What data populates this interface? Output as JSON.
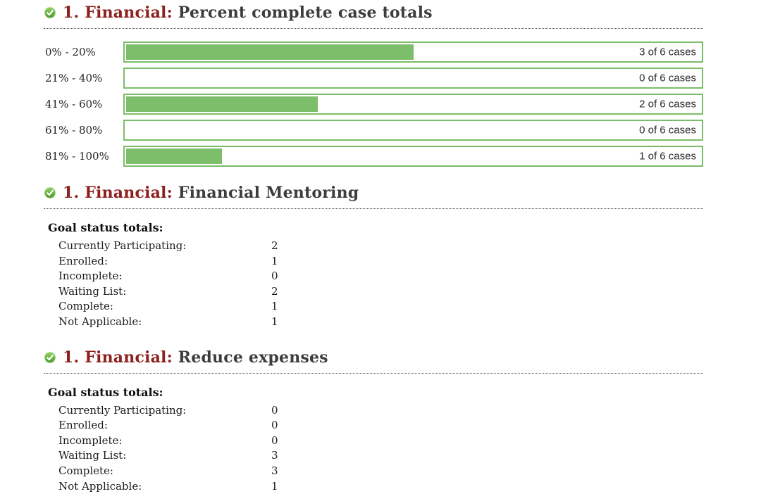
{
  "colors": {
    "bar_green": "#7dbe6a",
    "bar_border_green": "#7cbc68",
    "heading_red": "#8e1f1f",
    "heading_gray": "#3d3d3d",
    "icon_green": "#57a237"
  },
  "report": {
    "sections": [
      {
        "heading": {
          "prefix": "1. Financial:",
          "title": "Percent complete case totals"
        }
      },
      {
        "heading": {
          "prefix": "1. Financial:",
          "title": "Financial Mentoring"
        },
        "goal_totals": {
          "heading": "Goal status totals:",
          "items": [
            {
              "label": "Currently Participating:",
              "value": "2"
            },
            {
              "label": "Enrolled:",
              "value": "1"
            },
            {
              "label": "Incomplete:",
              "value": "0"
            },
            {
              "label": "Waiting List:",
              "value": "2"
            },
            {
              "label": "Complete:",
              "value": "1"
            },
            {
              "label": "Not Applicable:",
              "value": "1"
            }
          ]
        }
      },
      {
        "heading": {
          "prefix": "1. Financial:",
          "title": "Reduce expenses"
        },
        "goal_totals": {
          "heading": "Goal status totals:",
          "items": [
            {
              "label": "Currently Participating:",
              "value": "0"
            },
            {
              "label": "Enrolled:",
              "value": "0"
            },
            {
              "label": "Incomplete:",
              "value": "0"
            },
            {
              "label": "Waiting List:",
              "value": "3"
            },
            {
              "label": "Complete:",
              "value": "3"
            },
            {
              "label": "Not Applicable:",
              "value": "1"
            }
          ]
        }
      }
    ]
  },
  "chart_data": {
    "type": "bar",
    "orientation": "horizontal",
    "title": "1. Financial: Percent complete case totals",
    "categories": [
      "0% - 20%",
      "21% - 40%",
      "41% - 60%",
      "61% - 80%",
      "81% - 100%"
    ],
    "values": [
      3,
      0,
      2,
      0,
      1
    ],
    "total_cases": 6,
    "bar_labels": [
      "3 of 6 cases",
      "0 of 6 cases",
      "2 of 6 cases",
      "0 of 6 cases",
      "1 of 6 cases"
    ],
    "xlim": [
      0,
      6
    ],
    "grid": false,
    "legend": false,
    "bar_color": "#7dbe6a"
  }
}
